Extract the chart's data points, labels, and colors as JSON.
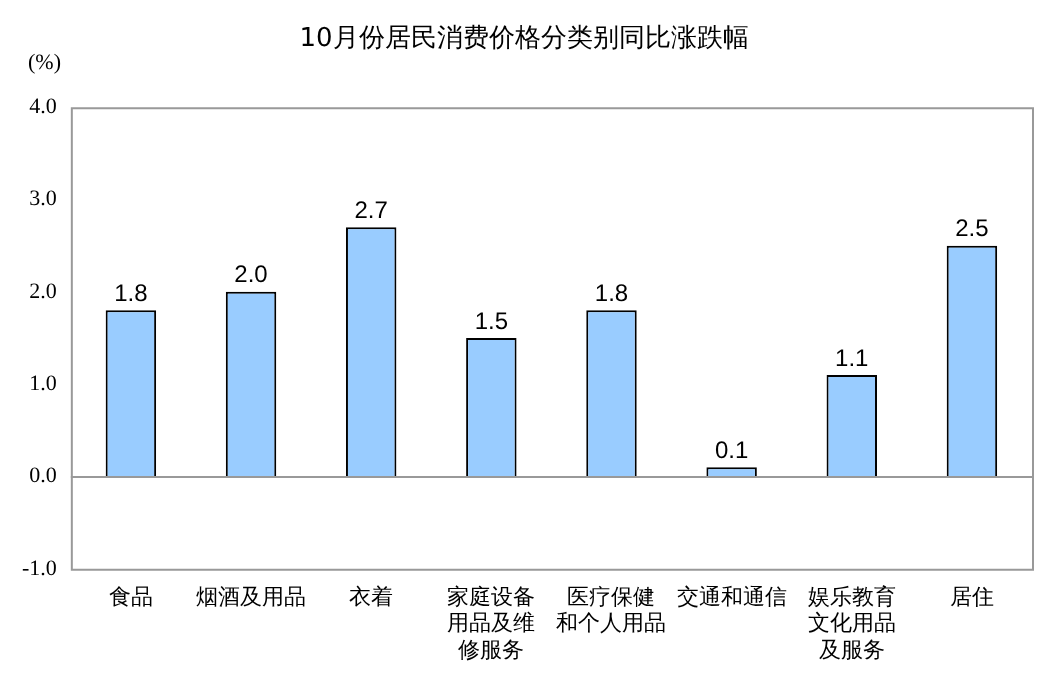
{
  "chart_data": {
    "type": "bar",
    "title": "10月份居民消费价格分类别同比涨跌幅",
    "ylabel": "(%)",
    "categories": [
      "食品",
      "烟酒及用品",
      "衣着",
      "家庭设备用品及维修服务",
      "医疗保健和个人用品",
      "交通和通信",
      "娱乐教育文化用品及服务",
      "居住"
    ],
    "values": [
      1.8,
      2.0,
      2.7,
      1.5,
      1.8,
      0.1,
      1.1,
      2.5
    ],
    "color": "#99ccff",
    "ylim": [
      -1,
      4
    ],
    "yticks": [
      {
        "value": -1,
        "label": "-1.0"
      },
      {
        "value": 0,
        "label": "0.0"
      },
      {
        "value": 1,
        "label": "1.0"
      },
      {
        "value": 2,
        "label": "2.0"
      },
      {
        "value": 3,
        "label": "3.0"
      },
      {
        "value": 4,
        "label": "4.0"
      }
    ],
    "value_labels": [
      "1.8",
      "2.0",
      "2.7",
      "1.5",
      "1.8",
      "0.1",
      "1.1",
      "2.5"
    ],
    "legend": false
  }
}
